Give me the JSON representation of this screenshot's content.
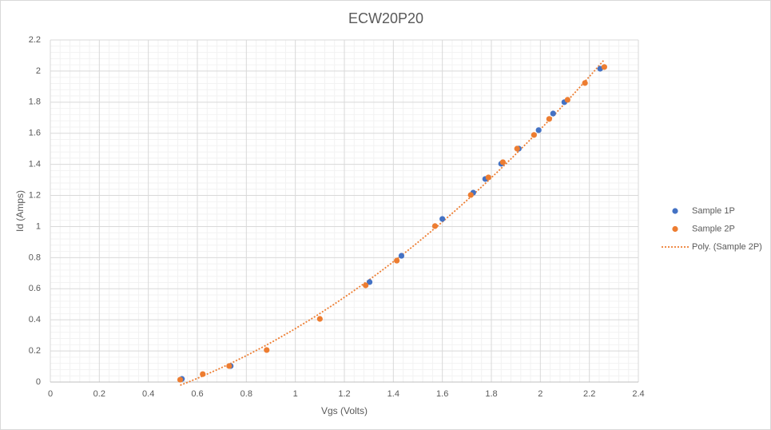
{
  "chart_data": {
    "type": "scatter",
    "title": "ECW20P20",
    "x_label": "Vgs (Volts)",
    "y_label": "Id (Amps)",
    "series": [
      {
        "name": "Sample 1P",
        "color": "#4472c4",
        "x": [
          0.537,
          0.736,
          1.303,
          1.433,
          1.6,
          1.726,
          1.775,
          1.84,
          1.912,
          1.993,
          2.052,
          2.098,
          2.244
        ],
        "values": [
          0.02,
          0.103,
          0.643,
          0.812,
          1.049,
          1.218,
          1.306,
          1.404,
          1.501,
          1.62,
          1.727,
          1.8,
          2.015
        ]
      },
      {
        "name": "Sample 2P",
        "color": "#ed7d31",
        "x": [
          0.53,
          0.622,
          0.73,
          0.883,
          1.1,
          1.287,
          1.414,
          1.57,
          1.716,
          1.788,
          1.847,
          1.905,
          1.974,
          2.036,
          2.111,
          2.182,
          2.261
        ],
        "values": [
          0.015,
          0.051,
          0.103,
          0.206,
          0.406,
          0.622,
          0.781,
          1.003,
          1.203,
          1.316,
          1.414,
          1.501,
          1.589,
          1.692,
          1.815,
          1.923,
          2.026
        ]
      }
    ],
    "trendline": {
      "name": "Poly. (Sample 2P)",
      "series": 1,
      "order": 2,
      "color": "#ed7d31"
    },
    "xlim": [
      0,
      2.4
    ],
    "xticks": [
      0,
      0.2,
      0.4,
      0.6,
      0.8,
      1,
      1.2,
      1.4,
      1.6,
      1.8,
      2,
      2.2,
      2.4
    ],
    "ylim": [
      0,
      2.2
    ],
    "yticks": [
      0,
      0.2,
      0.4,
      0.6,
      0.8,
      1,
      1.2,
      1.4,
      1.6,
      1.8,
      2,
      2.2
    ],
    "grid": true,
    "minor_divisions": 5,
    "legend": "right"
  }
}
